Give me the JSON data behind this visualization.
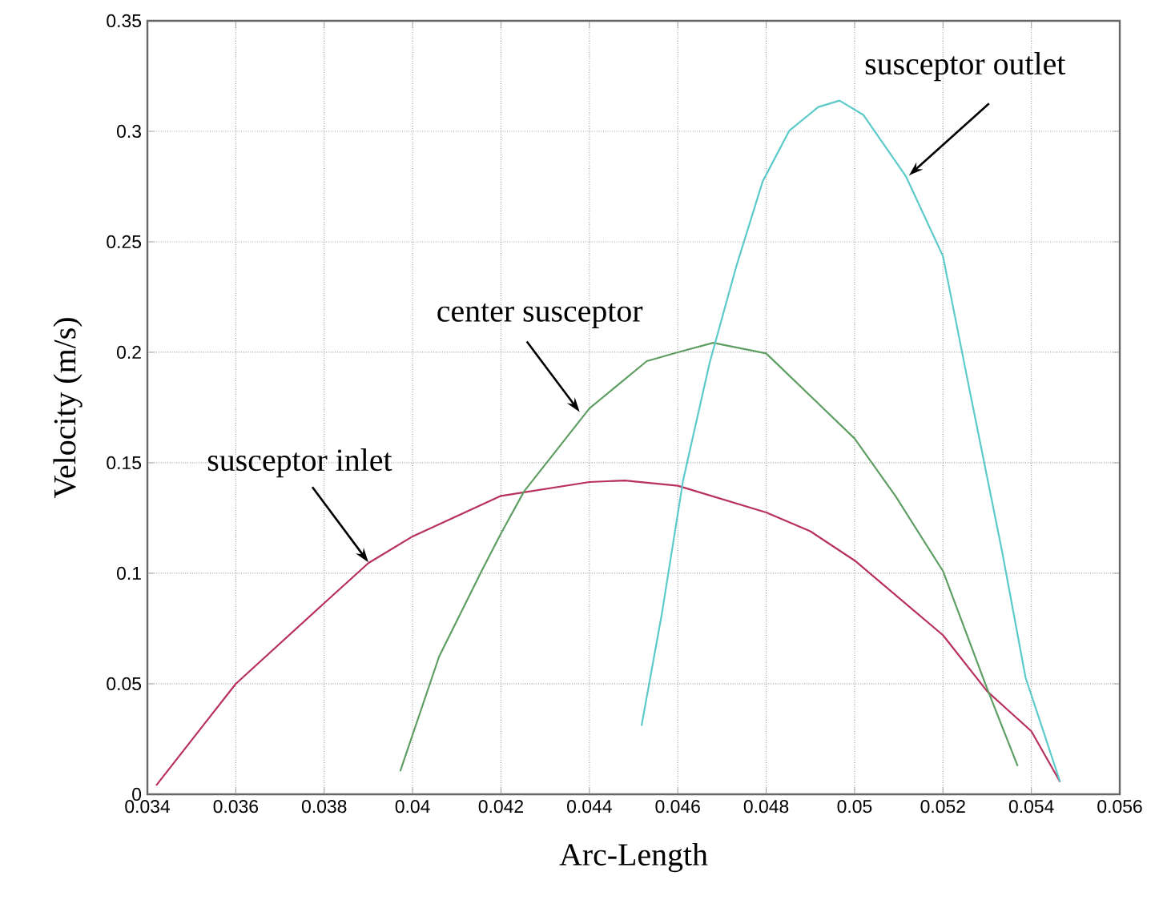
{
  "chart_data": {
    "type": "line",
    "xlabel": "Arc-Length",
    "ylabel": "Velocity (m/s)",
    "xlim": [
      0.034,
      0.056
    ],
    "xticks": [
      0.034,
      0.036,
      0.038,
      0.04,
      0.042,
      0.044,
      0.046,
      0.048,
      0.05,
      0.052,
      0.054,
      0.056
    ],
    "ylim": [
      0,
      0.35
    ],
    "yticks": [
      0,
      0.05,
      0.1,
      0.15,
      0.2,
      0.25,
      0.3,
      0.35
    ],
    "grid": true,
    "series": [
      {
        "color": "#b8305c",
        "x": [
          0.0342,
          0.036,
          0.038,
          0.039,
          0.04,
          0.042,
          0.044,
          0.0448,
          0.046,
          0.048,
          0.049,
          0.05,
          0.052,
          0.053,
          0.054,
          0.05465
        ],
        "values": [
          0.004,
          0.05,
          0.0865,
          0.1046,
          0.1167,
          0.135,
          0.1413,
          0.142,
          0.1396,
          0.1275,
          0.119,
          0.1058,
          0.072,
          0.0466,
          0.0285,
          0.0056
        ]
      },
      {
        "color": "#5e9e62",
        "x": [
          0.03972,
          0.0406,
          0.04156,
          0.042,
          0.04252,
          0.044,
          0.0453,
          0.046,
          0.0468,
          0.048,
          0.05,
          0.05093,
          0.052,
          0.053,
          0.05369
        ],
        "values": [
          0.0104,
          0.0623,
          0.101,
          0.118,
          0.137,
          0.1746,
          0.196,
          0.2,
          0.2043,
          0.1995,
          0.161,
          0.1348,
          0.101,
          0.0478,
          0.0128
        ]
      },
      {
        "color": "#5ccaca",
        "x": [
          0.04518,
          0.04564,
          0.04612,
          0.04672,
          0.04732,
          0.04792,
          0.04852,
          0.04918,
          0.04966,
          0.0502,
          0.05116,
          0.052,
          0.0526,
          0.05333,
          0.05387,
          0.05423,
          0.05465
        ],
        "values": [
          0.031,
          0.0817,
          0.142,
          0.1952,
          0.2386,
          0.2773,
          0.3002,
          0.311,
          0.3139,
          0.3074,
          0.2797,
          0.2435,
          0.1831,
          0.1107,
          0.0527,
          0.031,
          0.0056
        ]
      }
    ],
    "annotations": [
      {
        "text": "susceptor inlet",
        "x": 0.039,
        "y": 0.105
      },
      {
        "text": "center susceptor",
        "x": 0.04378,
        "y": 0.173
      },
      {
        "text": "susceptor outlet",
        "x": 0.05123,
        "y": 0.28
      }
    ]
  }
}
